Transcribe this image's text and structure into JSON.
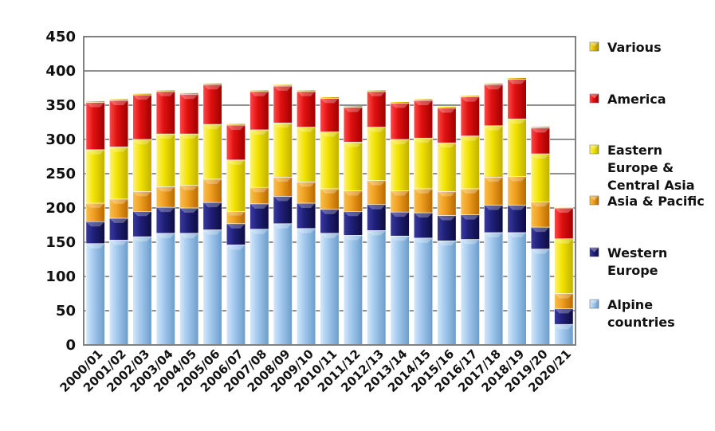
{
  "chart_data": {
    "type": "bar",
    "stacked": true,
    "title": "",
    "xlabel": "",
    "ylabel": "",
    "ylim": [
      0,
      450
    ],
    "yticks": [
      0,
      50,
      100,
      150,
      200,
      250,
      300,
      350,
      400,
      450
    ],
    "grid": true,
    "legend_position": "right",
    "categories": [
      "2000/01",
      "2001/02",
      "2002/03",
      "2003/04",
      "2004/05",
      "2005/06",
      "2006/07",
      "2007/08",
      "2008/09",
      "2009/10",
      "2010/11",
      "2011/12",
      "2012/13",
      "2013/14",
      "2014/15",
      "2015/16",
      "2016/17",
      "2017/18",
      "2018/19",
      "2019/20",
      "2020/21"
    ],
    "series": [
      {
        "name": "Alpine countries",
        "color": "#9ec3e6",
        "values": [
          148,
          153,
          158,
          163,
          163,
          168,
          146,
          169,
          177,
          170,
          163,
          160,
          167,
          159,
          156,
          152,
          154,
          164,
          164,
          140,
          30
        ]
      },
      {
        "name": "Western Europe",
        "color": "#1b1b6b",
        "values": [
          32,
          32,
          37,
          38,
          37,
          40,
          31,
          37,
          40,
          37,
          35,
          35,
          38,
          35,
          37,
          37,
          36,
          40,
          40,
          32,
          23
        ]
      },
      {
        "name": "Asia & Pacific",
        "color": "#f0a020",
        "values": [
          27,
          28,
          29,
          30,
          33,
          34,
          18,
          24,
          28,
          31,
          30,
          30,
          35,
          31,
          35,
          35,
          38,
          41,
          42,
          37,
          22
        ]
      },
      {
        "name": "Eastern Europe & Central Asia",
        "color": "#f0e000",
        "values": [
          78,
          76,
          76,
          77,
          75,
          80,
          75,
          84,
          79,
          80,
          83,
          71,
          78,
          75,
          74,
          71,
          77,
          75,
          84,
          70,
          80
        ]
      },
      {
        "name": "America",
        "color": "#e01010",
        "values": [
          69,
          68,
          65,
          62,
          58,
          58,
          51,
          56,
          54,
          52,
          49,
          51,
          52,
          53,
          55,
          51,
          57,
          60,
          58,
          38,
          45
        ]
      },
      {
        "name": "Various",
        "color": "#e8c000",
        "values": [
          2,
          2,
          2,
          2,
          2,
          2,
          2,
          2,
          2,
          2,
          2,
          2,
          2,
          2,
          2,
          2,
          2,
          2,
          2,
          2,
          1
        ]
      }
    ],
    "legend": [
      {
        "lines": [
          "Various"
        ],
        "series": 5
      },
      {
        "lines": [
          "America"
        ],
        "series": 4
      },
      {
        "lines": [
          "Eastern",
          "Europe &",
          "Central Asia"
        ],
        "series": 3
      },
      {
        "lines": [
          "Asia & Pacific"
        ],
        "series": 2
      },
      {
        "lines": [
          "Western",
          "Europe"
        ],
        "series": 1
      },
      {
        "lines": [
          "Alpine",
          "countries"
        ],
        "series": 0
      }
    ]
  }
}
